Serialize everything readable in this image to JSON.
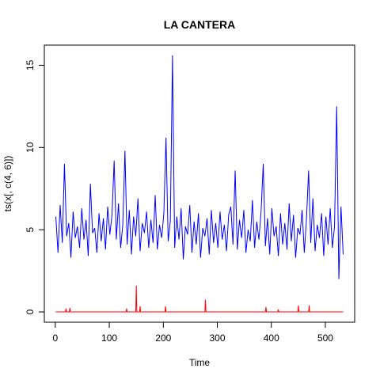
{
  "chart_data": {
    "type": "line",
    "title": "LA CANTERA",
    "x_label": "Time",
    "y_label": "ts(x[, c(4, 6)])",
    "xlim": [
      -20.28,
      554.28
    ],
    "ylim": [
      -0.624,
      16.224
    ],
    "xticks": [
      0,
      100,
      200,
      300,
      400,
      500
    ],
    "yticks": [
      0,
      5,
      10,
      15
    ],
    "series": [
      {
        "color": "#0000ff",
        "x": [
          1,
          5,
          9,
          13,
          17,
          21,
          25,
          29,
          33,
          37,
          41,
          45,
          49,
          53,
          57,
          61,
          65,
          69,
          73,
          77,
          81,
          85,
          89,
          93,
          97,
          101,
          105,
          109,
          113,
          117,
          121,
          125,
          129,
          133,
          137,
          141,
          145,
          149,
          153,
          157,
          161,
          165,
          169,
          173,
          177,
          181,
          185,
          189,
          193,
          197,
          201,
          205,
          209,
          213,
          217,
          221,
          225,
          229,
          233,
          237,
          241,
          245,
          249,
          253,
          257,
          261,
          265,
          269,
          273,
          277,
          281,
          285,
          289,
          293,
          297,
          301,
          305,
          309,
          313,
          317,
          321,
          325,
          329,
          333,
          337,
          341,
          345,
          349,
          353,
          357,
          361,
          365,
          369,
          373,
          377,
          381,
          385,
          389,
          393,
          397,
          401,
          405,
          409,
          413,
          417,
          421,
          425,
          429,
          433,
          437,
          441,
          445,
          449,
          453,
          457,
          461,
          465,
          469,
          473,
          477,
          481,
          485,
          489,
          493,
          497,
          501,
          505,
          509,
          513,
          517,
          521,
          525,
          529,
          533
        ],
        "values": [
          5.8,
          3.6,
          6.5,
          4.2,
          9.0,
          4.6,
          5.4,
          3.3,
          6.1,
          4.5,
          5.2,
          3.9,
          6.3,
          4.4,
          5.6,
          3.4,
          7.8,
          4.8,
          5.1,
          3.6,
          6.0,
          4.3,
          5.7,
          3.8,
          6.4,
          4.7,
          5.9,
          9.2,
          4.4,
          6.6,
          3.9,
          5.3,
          9.8,
          4.1,
          6.2,
          3.5,
          5.8,
          4.6,
          6.9,
          3.7,
          5.4,
          4.8,
          6.1,
          3.9,
          5.6,
          4.2,
          7.1,
          3.8,
          5.3,
          4.5,
          6.0,
          10.6,
          4.3,
          5.5,
          15.6,
          3.9,
          5.8,
          4.4,
          6.3,
          3.2,
          5.2,
          4.7,
          6.5,
          3.6,
          5.5,
          4.1,
          6.0,
          3.3,
          5.1,
          4.6,
          5.7,
          3.5,
          6.2,
          4.2,
          5.4,
          3.9,
          6.1,
          4.4,
          5.3,
          3.7,
          5.9,
          6.4,
          4.1,
          8.6,
          3.8,
          5.6,
          4.5,
          6.2,
          3.6,
          5.0,
          4.3,
          6.8,
          3.9,
          5.5,
          4.4,
          6.1,
          9.0,
          4.0,
          5.7,
          3.5,
          6.3,
          4.6,
          5.2,
          3.4,
          6.0,
          4.1,
          5.4,
          3.8,
          6.6,
          4.3,
          5.9,
          3.3,
          5.1,
          4.7,
          6.2,
          3.6,
          5.6,
          8.6,
          4.2,
          6.9,
          3.7,
          5.3,
          4.5,
          6.0,
          3.4,
          5.8,
          4.1,
          6.3,
          3.9,
          5.2,
          12.5,
          2.0,
          6.4,
          3.5
        ]
      },
      {
        "color": "#ff0000",
        "x": [
          1,
          19,
          20,
          21,
          26,
          27,
          28,
          131,
          132,
          133,
          149,
          150,
          151,
          156,
          157,
          158,
          203,
          204,
          205,
          277,
          278,
          279,
          389,
          390,
          391,
          412,
          413,
          414,
          449,
          450,
          451,
          469,
          470,
          471,
          533
        ],
        "values": [
          0,
          0,
          0.2,
          0,
          0,
          0.25,
          0,
          0,
          0.2,
          0,
          0,
          1.6,
          0,
          0,
          0.35,
          0,
          0,
          0.35,
          0,
          0,
          0.75,
          0,
          0,
          0.3,
          0,
          0,
          0.15,
          0,
          0,
          0.4,
          0,
          0,
          0.4,
          0,
          0
        ]
      }
    ]
  }
}
